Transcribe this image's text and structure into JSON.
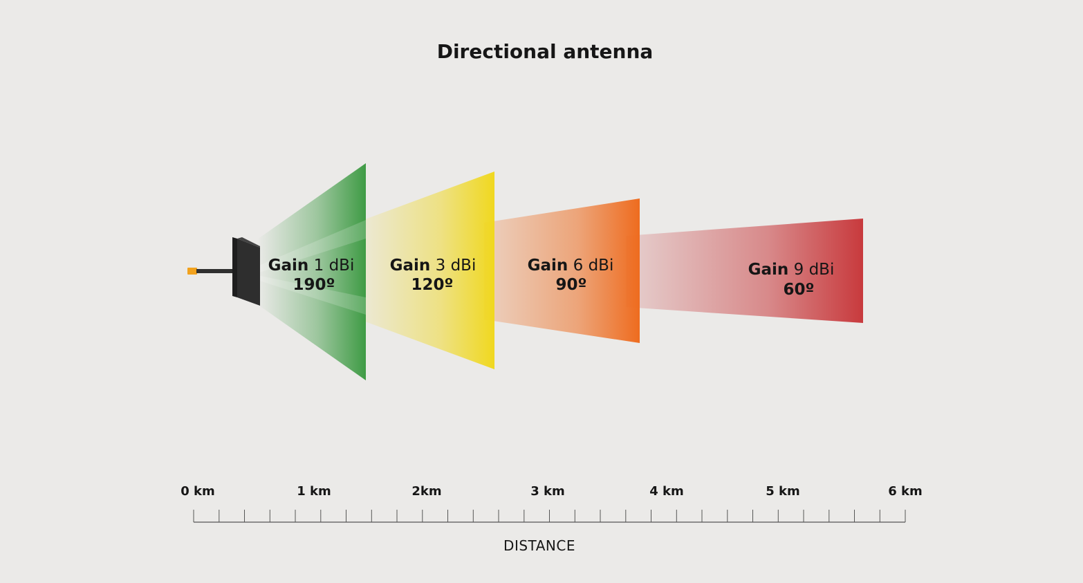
{
  "title": "Directional antenna",
  "gain_word": "Gain",
  "beams": [
    {
      "gain": "1 dBi",
      "angle": "190º",
      "color": "#3f9b45"
    },
    {
      "gain": "3 dBi",
      "angle": "120º",
      "color": "#f0d81f"
    },
    {
      "gain": "6 dBi",
      "angle": "90º",
      "color": "#ee6c1f"
    },
    {
      "gain": "9 dBi",
      "angle": "60º",
      "color": "#c83a3d"
    }
  ],
  "distance_axis": {
    "label": "DISTANCE",
    "ticks": [
      "0 km",
      "1 km",
      "2km",
      "3 km",
      "4 km",
      "5 km",
      "6 km"
    ]
  },
  "antenna": {
    "connector_color": "#f2a21d",
    "panel_color": "#2b2b2b"
  }
}
